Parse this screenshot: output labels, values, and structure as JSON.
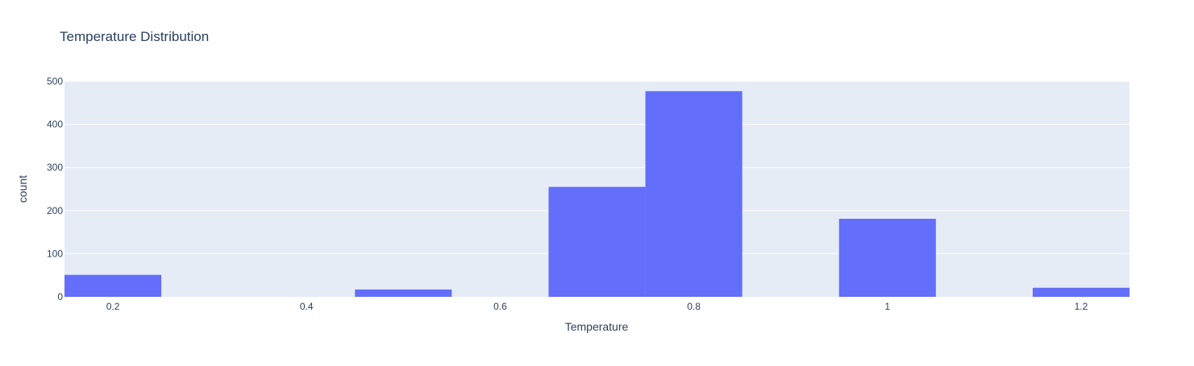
{
  "chart_data": {
    "type": "bar",
    "title": "Temperature Distribution",
    "xlabel": "Temperature",
    "ylabel": "count",
    "xlim": [
      0.15,
      1.25
    ],
    "ylim": [
      0,
      500
    ],
    "bin_width": 0.1,
    "x_ticks": [
      {
        "value": 0.2,
        "label": "0.2"
      },
      {
        "value": 0.4,
        "label": "0.4"
      },
      {
        "value": 0.6,
        "label": "0.6"
      },
      {
        "value": 0.8,
        "label": "0.8"
      },
      {
        "value": 1.0,
        "label": "1"
      },
      {
        "value": 1.2,
        "label": "1.2"
      }
    ],
    "y_ticks": [
      {
        "value": 0,
        "label": "0"
      },
      {
        "value": 100,
        "label": "100"
      },
      {
        "value": 200,
        "label": "200"
      },
      {
        "value": 300,
        "label": "300"
      },
      {
        "value": 400,
        "label": "400"
      },
      {
        "value": 500,
        "label": "500"
      }
    ],
    "bars": [
      {
        "x": 0.2,
        "value": 51
      },
      {
        "x": 0.5,
        "value": 17
      },
      {
        "x": 0.7,
        "value": 255
      },
      {
        "x": 0.8,
        "value": 477
      },
      {
        "x": 1.0,
        "value": 181
      },
      {
        "x": 1.2,
        "value": 21
      }
    ],
    "grid": true,
    "colors": {
      "bar": "#636efa",
      "plot_bg": "#e5ecf6",
      "grid": "#ffffff",
      "text": "#2a3f5f",
      "tick_text": "#2a3f5f"
    }
  }
}
